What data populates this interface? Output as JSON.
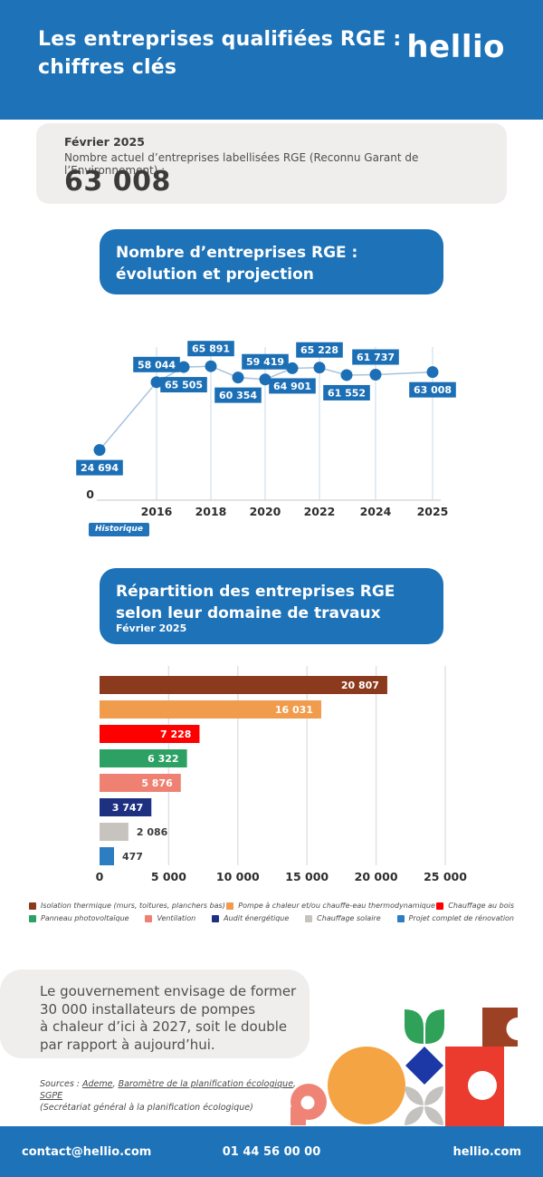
{
  "colors": {
    "brand_blue": "#1d72b8",
    "chart_label_blue": "#1c6fb5",
    "line_color": "#a6c2dc",
    "grid_line_blue": "#c7d9ea",
    "grid_line_gray": "#dfe3e7",
    "text_dark": "#3b3b3b",
    "text_body": "#4f4f4f",
    "box_gray": "#f0eeec",
    "decor_salmon": "#ef8476",
    "decor_orange": "#f5a443",
    "decor_green": "#2fa158",
    "decor_blue": "#1b38a6",
    "decor_gray": "#c4c2bf",
    "decor_red": "#ea3b2e",
    "decor_brown": "#9c4123"
  },
  "header": {
    "title": "Les entreprises qualifiées RGE :\nchiffres clés",
    "logo": "hellio"
  },
  "summary": {
    "date": "Février 2025",
    "description": "Nombre actuel d’entreprises labellisées RGE (Reconnu Garant de l’Environnement) :",
    "value": "63 008"
  },
  "evolution_section": {
    "title": "Nombre d’entreprises RGE :\névolution et projection"
  },
  "distribution_section": {
    "title": "Répartition des entreprises RGE\nselon leur domaine de travaux",
    "subtitle": "Février 2025"
  },
  "chart_data": [
    {
      "type": "line",
      "title": "Nombre d’entreprises RGE : évolution et projection",
      "x": [
        2015,
        2016,
        2017,
        2018,
        2019,
        2020,
        2021,
        2022,
        2023,
        2024,
        2025
      ],
      "values": [
        24694,
        58044,
        65505,
        65891,
        60354,
        59419,
        64901,
        65228,
        61552,
        61737,
        63008
      ],
      "point_labels": [
        "24 694",
        "58 044",
        "65 505",
        "65 891",
        "60 354",
        "59 419",
        "64 901",
        "65 228",
        "61 552",
        "61 737",
        "63 008"
      ],
      "x_ticks": [
        "2016",
        "2018",
        "2020",
        "2022",
        "2024",
        "2025"
      ],
      "y_origin_label": "0",
      "ylim": [
        0,
        70000
      ],
      "grid": "vertical",
      "legend": [
        "Historique"
      ],
      "legend_position": "bottom-left"
    },
    {
      "type": "bar",
      "orientation": "horizontal",
      "title": "Répartition des entreprises RGE selon leur domaine de travaux",
      "subtitle": "Février 2025",
      "categories": [
        "Isolation thermique (murs, toitures, planchers bas)",
        "Pompe à chaleur et/ou chauffe-eau thermodynamique",
        "Chauffage au bois",
        "Panneau photovoltaïque",
        "Ventilation",
        "Audit énergétique",
        "Chauffage solaire",
        "Projet complet de rénovation"
      ],
      "values": [
        20807,
        16031,
        7228,
        6322,
        5876,
        3747,
        2086,
        477
      ],
      "value_labels": [
        "20 807",
        "16 031",
        "7 228",
        "6 322",
        "5 876",
        "3 747",
        "2 086",
        "477"
      ],
      "colors": [
        "#8c3a1d",
        "#f19b4c",
        "#ff0000",
        "#2da164",
        "#ef8172",
        "#1e3181",
        "#c7c4c0",
        "#2c7dc2"
      ],
      "x_ticks": [
        "0",
        "5 000",
        "10 000",
        "15 000",
        "20 000",
        "25 000"
      ],
      "x_tick_values": [
        0,
        5000,
        10000,
        15000,
        20000,
        25000
      ],
      "xlim": [
        0,
        25000
      ],
      "grid": "vertical",
      "legend_position": "bottom"
    }
  ],
  "note": {
    "text": "Le gouvernement envisage de former\n30 000 installateurs de pompes\nà chaleur d’ici à 2027, soit le double\npar rapport à aujourd’hui."
  },
  "sources": {
    "prefix": "Sources : ",
    "link1": "Ademe",
    "sep1": ", ",
    "link2": "Baromètre de la planification écologique",
    "sep2": ", ",
    "link3": "SGPE",
    "line2": "(Secrétariat général à la planification écologique)"
  },
  "footer": {
    "email": "contact@hellio.com",
    "phone": "01 44 56 00 00",
    "website": "hellio.com"
  }
}
